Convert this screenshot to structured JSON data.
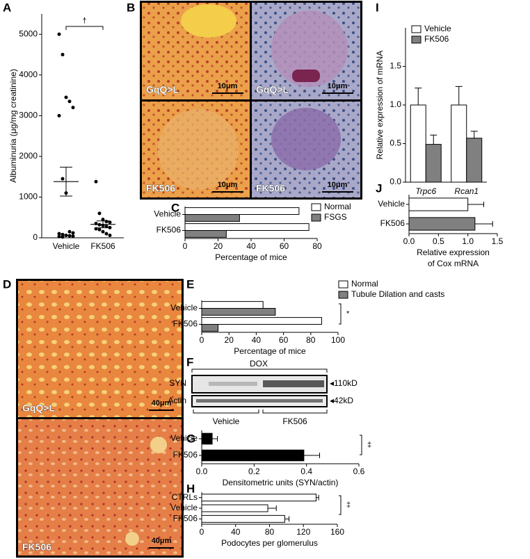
{
  "figure": {
    "panel_labels": [
      "A",
      "B",
      "C",
      "D",
      "E",
      "F",
      "G",
      "H",
      "I",
      "J"
    ],
    "histology_b": {
      "labels": [
        "GqQ>L",
        "GqQ>L",
        "FK506",
        "FK506"
      ],
      "scale_bars": [
        "10μm",
        "10μm",
        "10μm",
        "10μm"
      ]
    },
    "histology_d": {
      "labels": [
        "GqQ>L",
        "FK506"
      ],
      "scale_bars": [
        "40μm",
        "40μm"
      ]
    },
    "blot": {
      "treatment": "DOX",
      "rows": [
        "SYN",
        "Actin"
      ],
      "sizes": [
        "◂110kD",
        "◂42kD"
      ],
      "groups": [
        "Vehicle",
        "FK506"
      ]
    }
  },
  "chart_data": [
    {
      "type": "strip",
      "ylabel": "Albuminuria (μg/mg creatinine)",
      "categories": [
        "Vehicle",
        "FK506"
      ],
      "points": [
        [
          5000,
          4500,
          3450,
          3350,
          3200,
          3000,
          1450,
          1100,
          150,
          120,
          100,
          80,
          60,
          50,
          40,
          30,
          20
        ],
        [
          1380,
          600,
          450,
          400,
          380,
          350,
          320,
          300,
          280,
          250,
          220,
          200,
          150,
          100,
          60
        ]
      ],
      "mean": [
        1380,
        330
      ],
      "sem": [
        355,
        85
      ],
      "color": "#000000",
      "ylim": [
        0,
        5500
      ],
      "yticks": [
        0,
        1000,
        2000,
        3000,
        4000,
        5000
      ],
      "annotation": "†"
    },
    {
      "type": "bar",
      "orientation": "horizontal",
      "xlabel": "Percentage of mice",
      "categories": [
        "Vehicle",
        "FK506"
      ],
      "series": [
        {
          "name": "Normal",
          "color": "#ffffff",
          "values": [
            69,
            75
          ]
        },
        {
          "name": "FSGS",
          "color": "#808080",
          "values": [
            33,
            25
          ]
        }
      ],
      "xlim": [
        0,
        80
      ],
      "xticks": [
        0,
        20,
        40,
        60,
        80
      ]
    },
    {
      "type": "bar",
      "orientation": "horizontal",
      "xlabel": "Percentage of mice",
      "categories": [
        "Vehicle",
        "FK506"
      ],
      "series": [
        {
          "name": "Normal",
          "color": "#ffffff",
          "values": [
            45,
            88
          ]
        },
        {
          "name": "Tubule Dilation and casts",
          "color": "#808080",
          "values": [
            54,
            12
          ]
        }
      ],
      "xlim": [
        0,
        100
      ],
      "xticks": [
        0,
        20,
        40,
        60,
        80,
        100
      ],
      "annotation": "*"
    },
    {
      "type": "bar",
      "orientation": "horizontal",
      "xlabel": "Densitometric units (SYN/actin)",
      "categories": [
        "Vehicle",
        "FK506"
      ],
      "series": [
        {
          "color": "#000000",
          "values": [
            0.04,
            0.39
          ],
          "errors": [
            0.02,
            0.06
          ]
        }
      ],
      "xlim": [
        0,
        0.6
      ],
      "xticks": [
        {
          "value": 0,
          "label": "0.0"
        },
        0.2,
        0.4,
        0.6
      ],
      "annotation": "‡"
    },
    {
      "type": "bar",
      "orientation": "horizontal",
      "xlabel": "Podocytes per glomerulus",
      "categories": [
        "CTRLs",
        "Vehicle",
        "FK506"
      ],
      "series": [
        {
          "color": "#ffffff",
          "values": [
            135,
            78,
            98
          ],
          "errors": [
            3,
            10,
            5
          ]
        }
      ],
      "xlim": [
        0,
        160
      ],
      "xticks": [
        0,
        40,
        80,
        120,
        160
      ],
      "annotation": "‡"
    },
    {
      "type": "bar",
      "orientation": "vertical",
      "ylabel": "Relative expression of mRNA",
      "categories": [
        "Trpc6",
        "Rcan1"
      ],
      "series": [
        {
          "name": "Vehicle",
          "color": "#ffffff",
          "values": [
            1.0,
            1.0
          ],
          "errors": [
            0.22,
            0.24
          ]
        },
        {
          "name": "FK506",
          "color": "#808080",
          "values": [
            0.49,
            0.57
          ],
          "errors": [
            0.12,
            0.09
          ]
        }
      ],
      "ylim": [
        0,
        2
      ],
      "yticks": [
        {
          "value": 0,
          "label": "0.0"
        },
        0.5,
        {
          "value": 1,
          "label": "1.0"
        },
        1.5
      ]
    },
    {
      "type": "bar",
      "orientation": "horizontal",
      "xlabel": [
        "Relative expression",
        "of Cox mRNA"
      ],
      "categories": [
        "Vehicle",
        "FK506"
      ],
      "series": [
        {
          "colors": [
            "#ffffff",
            "#808080"
          ],
          "values": [
            1.0,
            1.12
          ],
          "errors": [
            0.27,
            0.3
          ]
        }
      ],
      "xlim": [
        0,
        1.5
      ],
      "xticks": [
        {
          "value": 0,
          "label": "0.0"
        },
        0.5,
        {
          "value": 1,
          "label": "1.0"
        },
        1.5
      ]
    }
  ]
}
